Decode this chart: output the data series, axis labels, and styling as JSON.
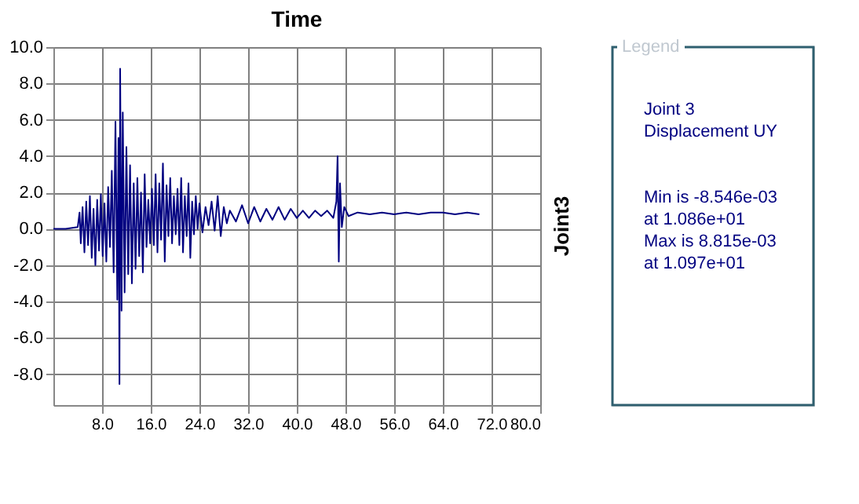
{
  "chart_data": {
    "type": "line",
    "title": "Time",
    "y2label": "Joint3",
    "legend_title": "Legend",
    "annotations": [
      "Joint 3",
      "Displacement  UY",
      "Min is -8.546e-03",
      "at 1.086e+01",
      "Max is 8.815e-03",
      "at 1.097e+01"
    ],
    "xlim": [
      0,
      80
    ],
    "ylim": [
      -9.7,
      10
    ],
    "xticks": [
      {
        "value": 8,
        "label": "8.0"
      },
      {
        "value": 16,
        "label": "16.0"
      },
      {
        "value": 24,
        "label": "24.0"
      },
      {
        "value": 32,
        "label": "32.0"
      },
      {
        "value": 40,
        "label": "40.0"
      },
      {
        "value": 48,
        "label": "48.0"
      },
      {
        "value": 56,
        "label": "56.0"
      },
      {
        "value": 64,
        "label": "64.0"
      },
      {
        "value": 72,
        "label": "72.0"
      },
      {
        "value": 80,
        "label": "80.0"
      }
    ],
    "yticks": [
      {
        "value": -8,
        "label": "-8.0"
      },
      {
        "value": -6,
        "label": "-6.0"
      },
      {
        "value": -4,
        "label": "-4.0"
      },
      {
        "value": -2,
        "label": "-2.0"
      },
      {
        "value": 0,
        "label": "0.0"
      },
      {
        "value": 2,
        "label": "2.0"
      },
      {
        "value": 4,
        "label": "4.0"
      },
      {
        "value": 6,
        "label": "6.0"
      },
      {
        "value": 8,
        "label": "8.0"
      },
      {
        "value": 10,
        "label": "10.0"
      }
    ],
    "grid": true,
    "marker": "none",
    "line_style": "solid",
    "series": [
      {
        "color": "#000080",
        "x": [
          0,
          2,
          4,
          4.3,
          4.5,
          4.8,
          5.1,
          5.4,
          5.7,
          6,
          6.3,
          6.6,
          6.9,
          7.2,
          7.5,
          7.8,
          8.1,
          8.4,
          8.7,
          9,
          9.3,
          9.6,
          9.9,
          10.2,
          10.5,
          10.7,
          10.86,
          10.97,
          11.2,
          11.4,
          11.7,
          12,
          12.3,
          12.6,
          12.9,
          13.2,
          13.5,
          13.8,
          14.1,
          14.4,
          14.7,
          15,
          15.3,
          15.6,
          15.9,
          16.2,
          16.5,
          16.8,
          17.1,
          17.4,
          17.7,
          18,
          18.3,
          18.6,
          18.9,
          19.2,
          19.5,
          19.8,
          20.1,
          20.4,
          20.7,
          21,
          21.3,
          21.6,
          21.9,
          22.2,
          22.5,
          22.8,
          23.1,
          23.4,
          23.7,
          24,
          24.5,
          25,
          25.5,
          26,
          26.5,
          27,
          27.5,
          28,
          28.5,
          29,
          30,
          31,
          32,
          33,
          34,
          35,
          36,
          37,
          38,
          39,
          40,
          41,
          42,
          43,
          44,
          45,
          46,
          46.5,
          46.7,
          46.9,
          47.1,
          47.4,
          47.8,
          48.5,
          50,
          52,
          54,
          56,
          58,
          60,
          62,
          64,
          66,
          68,
          70
        ],
        "values": [
          0,
          0,
          0.1,
          0.9,
          -0.8,
          1.2,
          -1.3,
          1.5,
          -0.9,
          1.8,
          -1.6,
          1.1,
          -2.0,
          1.6,
          -1.2,
          1.9,
          -1.5,
          1.4,
          -1.8,
          2.3,
          -1.0,
          3.2,
          -2.4,
          5.9,
          -3.9,
          5.0,
          -8.546,
          8.815,
          -4.5,
          6.4,
          -3.5,
          4.5,
          -2.5,
          3.5,
          -3.0,
          2.5,
          -2.2,
          2.8,
          -1.5,
          2.0,
          -2.4,
          3.0,
          -1.0,
          1.6,
          -0.8,
          2.2,
          -0.9,
          3.0,
          -1.3,
          2.5,
          -0.6,
          3.6,
          -1.8,
          2.4,
          -0.4,
          2.8,
          -0.8,
          1.8,
          -0.3,
          2.2,
          -0.9,
          2.8,
          -1.3,
          1.8,
          -0.4,
          2.5,
          -1.6,
          1.5,
          -0.3,
          1.8,
          0,
          1.4,
          -0.2,
          1.2,
          0.2,
          1.5,
          -0.1,
          1.8,
          -0.4,
          1.2,
          0.3,
          1.0,
          0.4,
          1.3,
          0.3,
          1.2,
          0.4,
          1.1,
          0.5,
          1.2,
          0.5,
          1.1,
          0.6,
          1.0,
          0.6,
          1.0,
          0.7,
          1.0,
          0.6,
          1.5,
          4.0,
          -1.8,
          2.5,
          0.1,
          1.2,
          0.7,
          0.9,
          0.8,
          0.9,
          0.8,
          0.9,
          0.8,
          0.9,
          0.9,
          0.8,
          0.9,
          0.8
        ]
      }
    ]
  }
}
